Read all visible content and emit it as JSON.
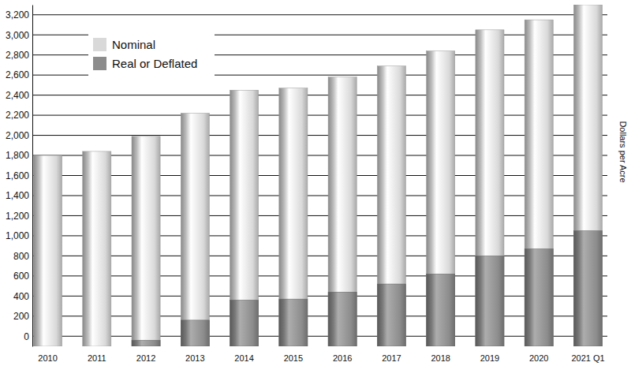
{
  "chart_data": {
    "type": "bar",
    "y_label": "Dollars per Acre",
    "categories": [
      "2010",
      "2011",
      "2012",
      "2013",
      "2014",
      "2015",
      "2016",
      "2017",
      "2018",
      "2019",
      "2020",
      "2021 Q1"
    ],
    "series": [
      {
        "name": "Nominal",
        "color": "#d9d9d9",
        "values": [
          1800,
          1840,
          1990,
          2220,
          2450,
          2470,
          2580,
          2690,
          2840,
          3050,
          3150,
          3300
        ]
      },
      {
        "name": "Real or Deflated",
        "color": "#8c8c8c",
        "values": [
          null,
          null,
          -40,
          160,
          360,
          370,
          440,
          520,
          620,
          800,
          870,
          1050
        ]
      }
    ],
    "ylim": [
      -100,
      3300
    ],
    "yticks": [
      0,
      200,
      400,
      600,
      800,
      {
        "value": 1000,
        "label": "1,000"
      },
      {
        "value": 1200,
        "label": "1,200"
      },
      {
        "value": 1400,
        "label": "1,400"
      },
      {
        "value": 1600,
        "label": "1,600"
      },
      {
        "value": 1800,
        "label": "1,800"
      },
      {
        "value": 2000,
        "label": "2,000"
      },
      {
        "value": 2200,
        "label": "2,200"
      },
      {
        "value": 2400,
        "label": "2,400"
      },
      {
        "value": 2600,
        "label": "2,600"
      },
      {
        "value": 2800,
        "label": "2,800"
      },
      {
        "value": 3000,
        "label": "3,000"
      },
      {
        "value": 3200,
        "label": "3,200"
      }
    ],
    "grid": true,
    "legend": "upper left",
    "stacked": false
  }
}
